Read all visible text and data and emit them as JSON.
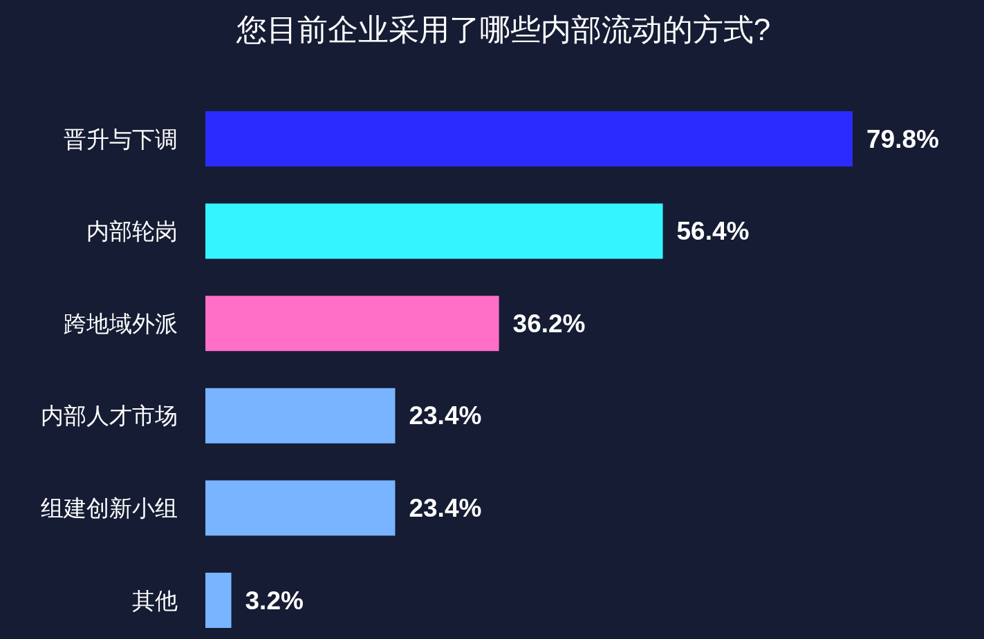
{
  "chart_data": {
    "type": "bar",
    "orientation": "horizontal",
    "title": "您目前企业采用了哪些内部流动的方式?",
    "categories": [
      "晋升与下调",
      "内部轮岗",
      "跨地域外派",
      "内部人才市场",
      "组建创新小组",
      "其他"
    ],
    "values": [
      79.8,
      56.4,
      36.2,
      23.4,
      23.4,
      3.2
    ],
    "colors": [
      "#2b2bff",
      "#33f5ff",
      "#ff6ec7",
      "#78b4ff",
      "#78b4ff",
      "#78b4ff"
    ],
    "value_labels": [
      "79.8%",
      "56.4%",
      "36.2%",
      "23.4%",
      "23.4%",
      "3.2%"
    ],
    "tick_labels": "y"
  }
}
